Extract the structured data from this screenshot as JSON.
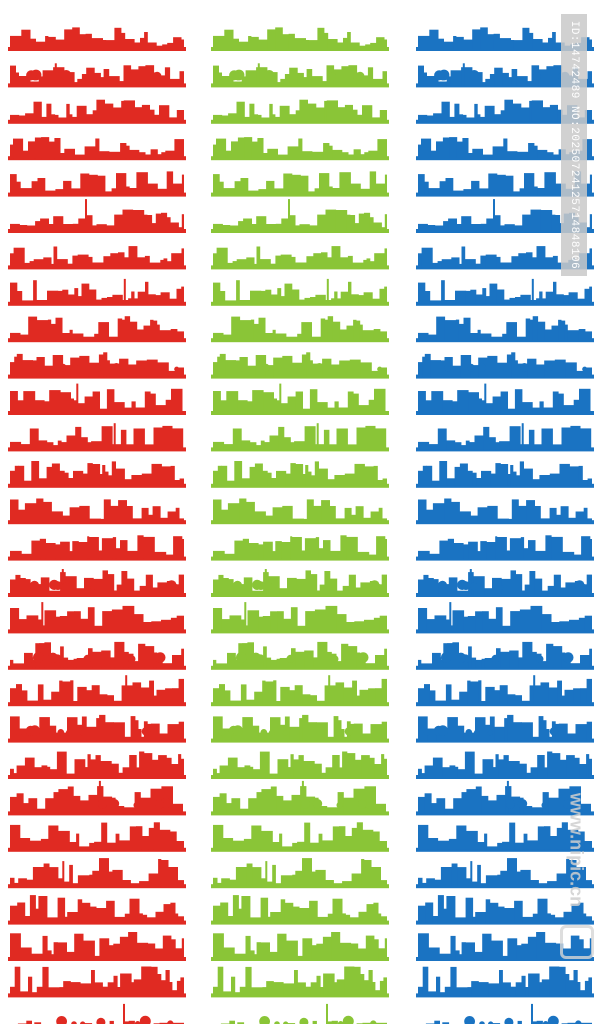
{
  "colors": {
    "columns": [
      "#e02a22",
      "#8ac537",
      "#1a73c2"
    ],
    "background": "#ffffff",
    "watermark": "#c9c9c9"
  },
  "skyline_variants": [
    "tower-city",
    "park-island",
    "downtown",
    "old-town",
    "industrial",
    "tv-tower-city",
    "oil-industry",
    "blocks",
    "domes",
    "trees",
    "factory",
    "metro",
    "highrise",
    "town-houses",
    "low-city",
    "farm-windmill",
    "mid-city",
    "village",
    "suburb",
    "cottages",
    "cathedral-city",
    "forest",
    "construction",
    "capital",
    "row-houses",
    "small-town",
    "harbor-city",
    "park"
  ],
  "watermark": {
    "id_text": "ID:14742489 NO:20250724125714848106",
    "site_text": "www.nipic.cn"
  }
}
